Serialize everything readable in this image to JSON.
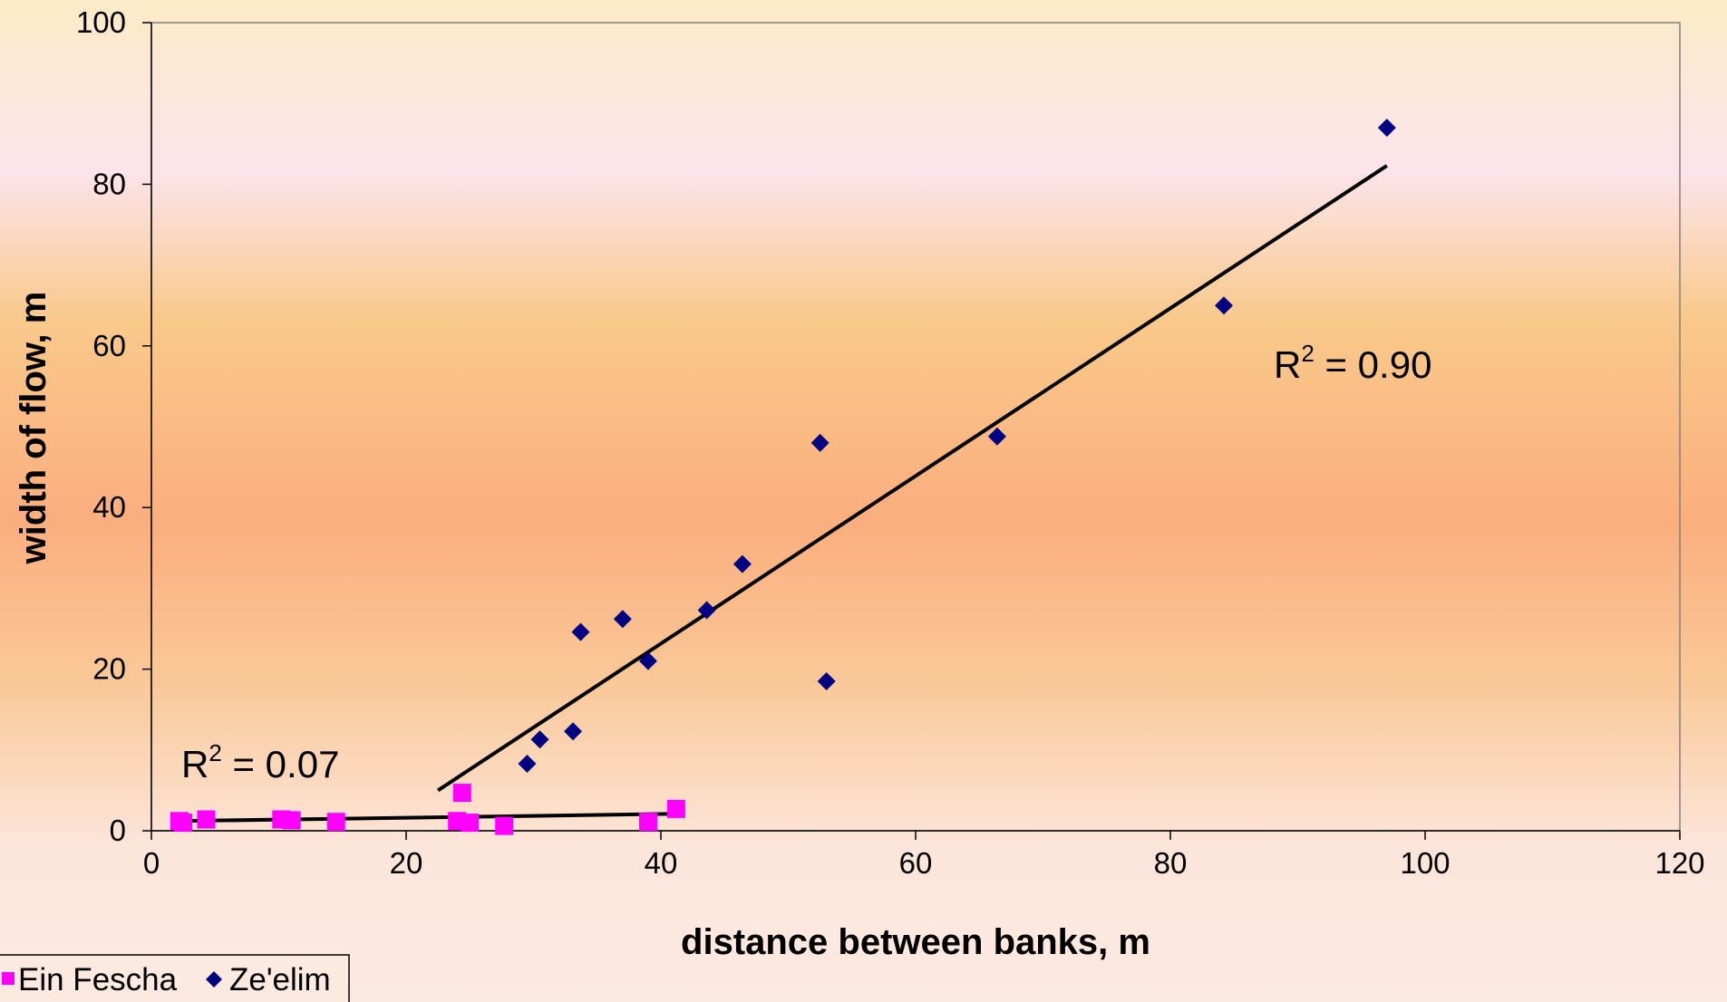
{
  "chart_data": {
    "type": "scatter",
    "title": "",
    "xlabel": "distance between banks, m",
    "ylabel": "width of flow, m",
    "xlim": [
      0,
      120
    ],
    "ylim": [
      0,
      100
    ],
    "x_ticks": [
      0,
      20,
      40,
      60,
      80,
      100,
      120
    ],
    "y_ticks": [
      0,
      20,
      40,
      60,
      80,
      100
    ],
    "grid": false,
    "legend_position": "bottom-left",
    "series": [
      {
        "name": "Ein Fescha",
        "marker": "square",
        "color": "#FF00FF",
        "points": [
          [
            2.2,
            1.2
          ],
          [
            2.5,
            1.0
          ],
          [
            4.3,
            1.4
          ],
          [
            10.2,
            1.4
          ],
          [
            11.0,
            1.3
          ],
          [
            14.5,
            1.1
          ],
          [
            24.0,
            1.2
          ],
          [
            24.4,
            4.7
          ],
          [
            25.0,
            1.0
          ],
          [
            27.7,
            0.6
          ],
          [
            39.0,
            1.1
          ],
          [
            41.2,
            2.7
          ]
        ],
        "trendline": {
          "x": [
            2,
            41.2
          ],
          "y": [
            1.2,
            2.1
          ]
        },
        "r2_label": "= 0.07"
      },
      {
        "name": "Ze'elim",
        "marker": "diamond",
        "color": "#000080",
        "points": [
          [
            29.5,
            8.3
          ],
          [
            30.5,
            11.3
          ],
          [
            33.1,
            12.3
          ],
          [
            33.7,
            24.6
          ],
          [
            37.0,
            26.2
          ],
          [
            39.0,
            21.0
          ],
          [
            43.6,
            27.3
          ],
          [
            46.4,
            33.0
          ],
          [
            52.5,
            48.0
          ],
          [
            53.0,
            18.5
          ],
          [
            66.4,
            48.8
          ],
          [
            84.2,
            65.0
          ],
          [
            97.0,
            87.0
          ]
        ],
        "trendline": {
          "x": [
            22.5,
            97
          ],
          "y": [
            5.0,
            82.3
          ]
        },
        "r2_label": "= 0.90"
      }
    ],
    "r2_prefix": "R",
    "r2_exponent": "2"
  }
}
